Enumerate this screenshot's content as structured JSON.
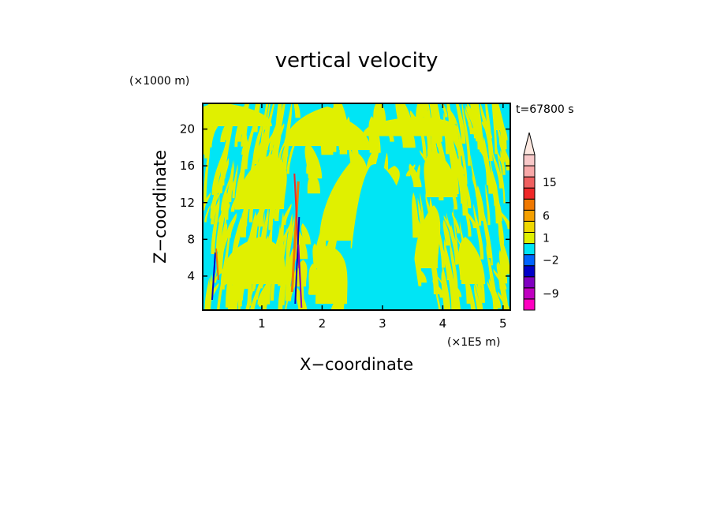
{
  "chart_data": {
    "type": "heatmap",
    "title": "vertical velocity",
    "time_label": "t=67800 s",
    "xlabel": "X−coordinate",
    "ylabel": "Z−coordinate",
    "x_unit": "(×1E5 m)",
    "y_unit": "(×1000 m)",
    "xlim": [
      0.02,
      5.12
    ],
    "ylim": [
      0.3,
      22.8
    ],
    "x_ticks": [
      1,
      2,
      3,
      4,
      5
    ],
    "x_tick_labels": [
      "1",
      "2",
      "3",
      "4",
      "5"
    ],
    "y_ticks": [
      4,
      8,
      12,
      16,
      20
    ],
    "y_tick_labels": [
      "4",
      "8",
      "12",
      "16",
      "20"
    ],
    "background_level_color": "#00e5f5",
    "field_primary_color": "#e0f000",
    "colorbar": {
      "levels": [
        {
          "color": "#ff00c0"
        },
        {
          "color": "#c000c0"
        },
        {
          "color": "#8000c0"
        },
        {
          "color": "#0000c8"
        },
        {
          "color": "#0064ff"
        },
        {
          "color": "#00e5f5"
        },
        {
          "color": "#e0f000"
        },
        {
          "color": "#f0d800"
        },
        {
          "color": "#f5a000"
        },
        {
          "color": "#f07800"
        },
        {
          "color": "#f02828"
        },
        {
          "color": "#f06060"
        },
        {
          "color": "#f8a8a8"
        },
        {
          "color": "#f8c8c8"
        },
        {
          "color": "#fde8e0"
        }
      ],
      "labels": [
        {
          "text": "15",
          "after_level": 11
        },
        {
          "text": "6",
          "after_level": 8
        },
        {
          "text": "1",
          "after_level": 6
        },
        {
          "text": "−2",
          "after_level": 4
        },
        {
          "text": "−9",
          "after_level": 1
        }
      ]
    },
    "grid": false,
    "legend": "colorbar-right"
  }
}
